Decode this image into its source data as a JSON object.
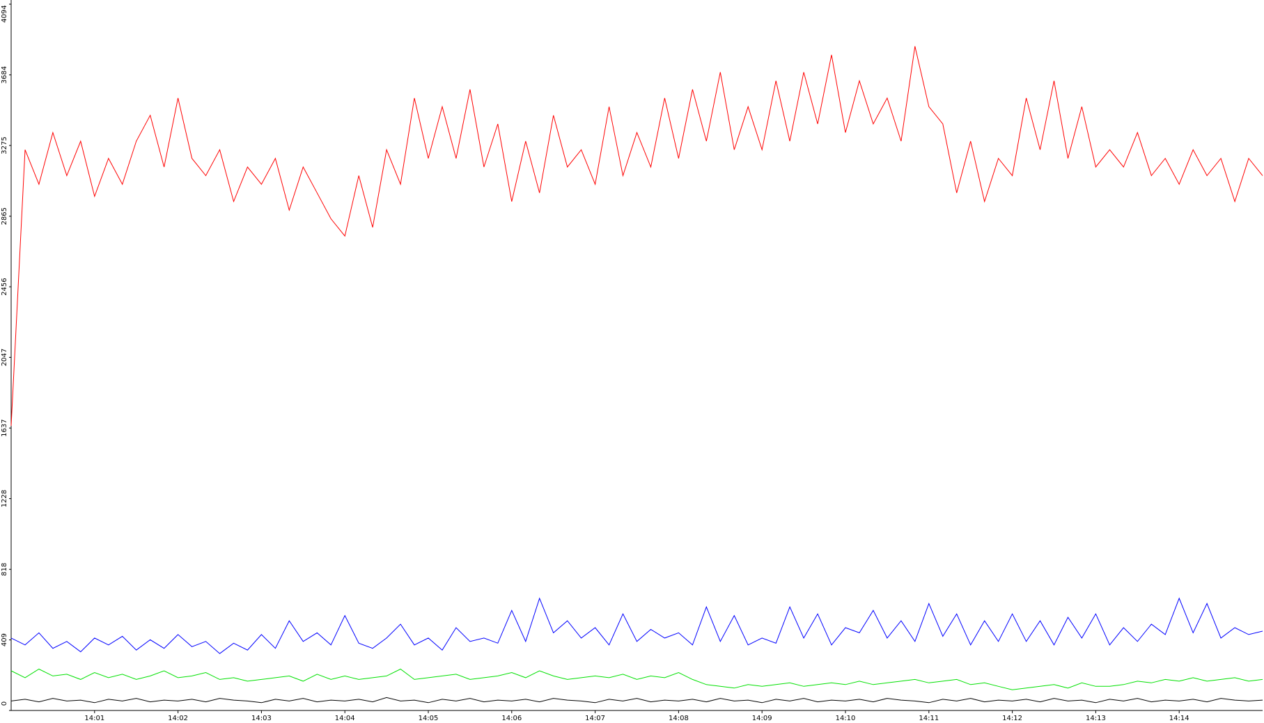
{
  "chart_data": {
    "type": "line",
    "categories": [
      null,
      null,
      null,
      null,
      null,
      null,
      "14:01",
      null,
      null,
      null,
      null,
      null,
      "14:02",
      null,
      null,
      null,
      null,
      null,
      "14:03",
      null,
      null,
      null,
      null,
      null,
      "14:04",
      null,
      null,
      null,
      null,
      null,
      "14:05",
      null,
      null,
      null,
      null,
      null,
      "14:06",
      null,
      null,
      null,
      null,
      null,
      "14:07",
      null,
      null,
      null,
      null,
      null,
      "14:08",
      null,
      null,
      null,
      null,
      null,
      "14:09",
      null,
      null,
      null,
      null,
      null,
      "14:10",
      null,
      null,
      null,
      null,
      null,
      "14:11",
      null,
      null,
      null,
      null,
      null,
      "14:12",
      null,
      null,
      null,
      null,
      null,
      "14:13",
      null,
      null,
      null,
      null,
      null,
      "14:14",
      null,
      null,
      null,
      null,
      null,
      null
    ],
    "series": [
      {
        "color": "#ff0000",
        "values": [
          1650,
          3250,
          3050,
          3350,
          3100,
          3300,
          2980,
          3200,
          3050,
          3300,
          3450,
          3150,
          3550,
          3200,
          3100,
          3250,
          2950,
          3150,
          3050,
          3200,
          2900,
          3150,
          3000,
          2850,
          2750,
          3100,
          2800,
          3250,
          3050,
          3550,
          3200,
          3500,
          3200,
          3600,
          3150,
          3400,
          2950,
          3300,
          3000,
          3450,
          3150,
          3250,
          3050,
          3500,
          3100,
          3350,
          3150,
          3550,
          3200,
          3600,
          3300,
          3700,
          3250,
          3500,
          3250,
          3650,
          3300,
          3700,
          3400,
          3800,
          3350,
          3650,
          3400,
          3550,
          3300,
          3850,
          3500,
          3400,
          3000,
          3300,
          2950,
          3200,
          3100,
          3550,
          3250,
          3650,
          3200,
          3500,
          3150,
          3250,
          3150,
          3350,
          3100,
          3200,
          3050,
          3250,
          3100,
          3200,
          2950,
          3200,
          3100
        ]
      },
      {
        "color": "#0000ff",
        "values": [
          420,
          380,
          450,
          360,
          400,
          340,
          420,
          380,
          430,
          350,
          410,
          360,
          440,
          370,
          400,
          330,
          390,
          350,
          440,
          360,
          520,
          400,
          450,
          380,
          550,
          390,
          360,
          420,
          500,
          380,
          420,
          350,
          480,
          400,
          420,
          390,
          580,
          400,
          650,
          450,
          520,
          420,
          480,
          380,
          560,
          400,
          470,
          420,
          450,
          380,
          600,
          400,
          550,
          380,
          420,
          390,
          600,
          420,
          560,
          380,
          480,
          450,
          580,
          420,
          520,
          400,
          620,
          430,
          560,
          380,
          520,
          400,
          560,
          400,
          520,
          380,
          540,
          420,
          560,
          380,
          480,
          400,
          500,
          440,
          650,
          450,
          620,
          420,
          480,
          440,
          460
        ]
      },
      {
        "color": "#00e000",
        "values": [
          230,
          190,
          240,
          200,
          210,
          180,
          220,
          190,
          210,
          180,
          200,
          230,
          190,
          200,
          220,
          180,
          190,
          170,
          180,
          190,
          200,
          170,
          210,
          180,
          200,
          180,
          190,
          200,
          240,
          180,
          190,
          200,
          210,
          180,
          190,
          200,
          220,
          190,
          230,
          200,
          180,
          190,
          200,
          190,
          210,
          180,
          200,
          190,
          220,
          180,
          150,
          140,
          130,
          150,
          140,
          150,
          160,
          140,
          150,
          160,
          150,
          170,
          150,
          160,
          170,
          180,
          160,
          170,
          180,
          150,
          160,
          140,
          120,
          130,
          140,
          150,
          130,
          160,
          140,
          140,
          150,
          170,
          160,
          180,
          170,
          190,
          170,
          180,
          190,
          170,
          180
        ]
      },
      {
        "color": "#000000",
        "values": [
          55,
          65,
          50,
          70,
          55,
          60,
          45,
          65,
          55,
          70,
          50,
          60,
          55,
          65,
          50,
          70,
          60,
          55,
          45,
          65,
          55,
          70,
          50,
          60,
          55,
          65,
          50,
          75,
          55,
          60,
          45,
          65,
          55,
          70,
          50,
          60,
          55,
          65,
          50,
          70,
          60,
          55,
          45,
          65,
          55,
          70,
          50,
          60,
          55,
          65,
          50,
          70,
          55,
          60,
          45,
          65,
          55,
          70,
          50,
          60,
          55,
          65,
          50,
          70,
          60,
          55,
          45,
          65,
          55,
          70,
          50,
          60,
          55,
          65,
          50,
          70,
          55,
          60,
          45,
          65,
          55,
          70,
          50,
          60,
          55,
          65,
          50,
          70,
          60,
          55,
          60
        ]
      }
    ],
    "ylim": [
      0,
      4094
    ],
    "yticks": [
      0,
      409,
      818,
      1228,
      1637,
      2047,
      2456,
      2865,
      3275,
      3684,
      4094
    ]
  }
}
